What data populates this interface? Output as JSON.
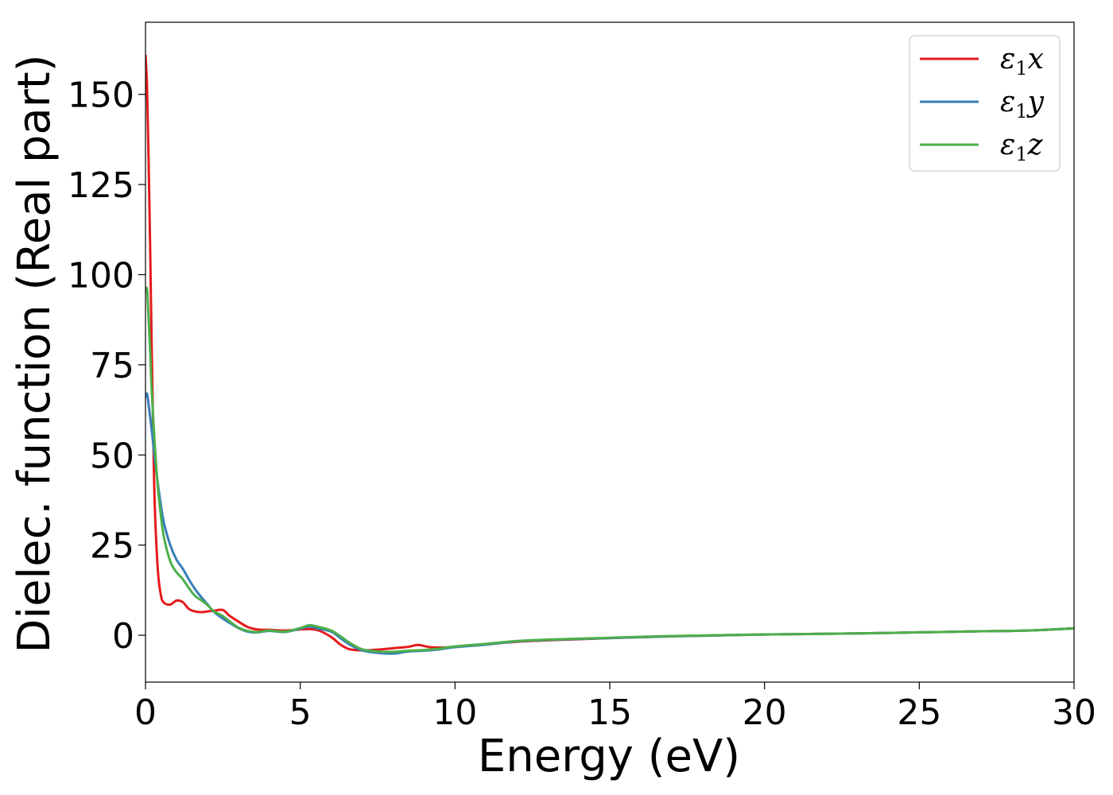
{
  "chart_data": {
    "type": "line",
    "xlabel": "Energy (eV)",
    "ylabel": "Dielec. function (Real part)",
    "xlim": [
      0,
      30
    ],
    "ylim": [
      -13,
      170
    ],
    "x_ticks": [
      0,
      5,
      10,
      15,
      20,
      25,
      30
    ],
    "y_ticks": [
      0,
      25,
      50,
      75,
      100,
      125,
      150
    ],
    "grid": false,
    "legend_position": "top-right",
    "series": [
      {
        "name": "ε1x",
        "label_main": "ε",
        "label_sub": "1",
        "label_tail": "x",
        "color": "#e41a1c",
        "x": [
          0,
          0.05,
          0.1,
          0.15,
          0.2,
          0.25,
          0.3,
          0.4,
          0.5,
          0.6,
          0.8,
          1.0,
          1.2,
          1.4,
          1.6,
          1.8,
          2.0,
          2.2,
          2.5,
          2.7,
          3.0,
          3.3,
          3.6,
          4.0,
          4.5,
          5.0,
          5.3,
          5.6,
          6.0,
          6.3,
          6.6,
          7.0,
          7.5,
          8.0,
          8.5,
          8.8,
          9.2,
          9.6,
          10.0,
          11,
          12,
          13,
          15,
          17,
          20,
          23,
          25,
          27,
          28.5,
          30
        ],
        "y": [
          161,
          152,
          132,
          108,
          80,
          56,
          36,
          18,
          11,
          9,
          8.5,
          9.6,
          9.2,
          7.3,
          6.6,
          6.4,
          6.6,
          6.8,
          7.0,
          5.5,
          3.8,
          2.3,
          1.6,
          1.5,
          1.3,
          1.6,
          1.7,
          1.3,
          -0.5,
          -2.6,
          -3.9,
          -4.2,
          -4.0,
          -3.6,
          -3.2,
          -2.7,
          -3.3,
          -3.4,
          -3.2,
          -2.5,
          -1.8,
          -1.4,
          -0.8,
          -0.3,
          0.2,
          0.5,
          0.8,
          1.1,
          1.3,
          1.9
        ]
      },
      {
        "name": "ε1y",
        "label_main": "ε",
        "label_sub": "1",
        "label_tail": "y",
        "color": "#377eb8",
        "x": [
          0,
          0.05,
          0.1,
          0.2,
          0.3,
          0.4,
          0.5,
          0.6,
          0.8,
          1.0,
          1.2,
          1.4,
          1.6,
          1.8,
          2.0,
          2.2,
          2.5,
          2.8,
          3.0,
          3.3,
          3.6,
          4.0,
          4.5,
          5.0,
          5.3,
          5.6,
          6.0,
          6.3,
          6.6,
          7.0,
          7.5,
          8.0,
          8.5,
          9.0,
          9.5,
          10.0,
          11,
          12,
          13,
          15,
          17,
          20,
          23,
          25,
          27,
          28.5,
          30
        ],
        "y": [
          66,
          67,
          64,
          57,
          49,
          42,
          36,
          31,
          25,
          21,
          18.5,
          15.5,
          12.8,
          10.6,
          8.6,
          6.6,
          4.6,
          3.0,
          2.0,
          1.0,
          0.8,
          1.2,
          0.9,
          1.8,
          2.4,
          1.8,
          1.0,
          -0.8,
          -2.6,
          -4.2,
          -4.9,
          -5.1,
          -4.5,
          -4.3,
          -3.9,
          -3.3,
          -2.6,
          -1.7,
          -1.3,
          -0.8,
          -0.3,
          0.2,
          0.5,
          0.8,
          1.1,
          1.3,
          1.9
        ]
      },
      {
        "name": "ε1z",
        "label_main": "ε",
        "label_sub": "1",
        "label_tail": "z",
        "color": "#4daf4a",
        "x": [
          0,
          0.05,
          0.1,
          0.15,
          0.2,
          0.3,
          0.4,
          0.5,
          0.6,
          0.8,
          1.0,
          1.2,
          1.4,
          1.6,
          1.8,
          2.0,
          2.2,
          2.5,
          2.8,
          3.0,
          3.3,
          3.6,
          4.0,
          4.5,
          5.0,
          5.3,
          5.6,
          6.0,
          6.3,
          6.6,
          7.0,
          7.5,
          8.0,
          8.5,
          9.0,
          9.5,
          10.0,
          11,
          12,
          13,
          15,
          17,
          20,
          23,
          25,
          27,
          28.5,
          30
        ],
        "y": [
          95,
          96,
          88,
          79,
          68,
          53,
          41,
          33,
          27,
          20.5,
          17.5,
          15.6,
          13.1,
          10.9,
          9.7,
          8.4,
          6.7,
          5.3,
          3.3,
          2.1,
          1.2,
          0.9,
          1.3,
          1.0,
          2.0,
          2.8,
          2.3,
          1.3,
          -0.3,
          -2.1,
          -3.9,
          -4.5,
          -4.6,
          -4.3,
          -4.1,
          -3.7,
          -3.1,
          -2.4,
          -1.6,
          -1.2,
          -0.7,
          -0.2,
          0.2,
          0.5,
          0.8,
          1.1,
          1.3,
          1.9
        ]
      }
    ]
  }
}
